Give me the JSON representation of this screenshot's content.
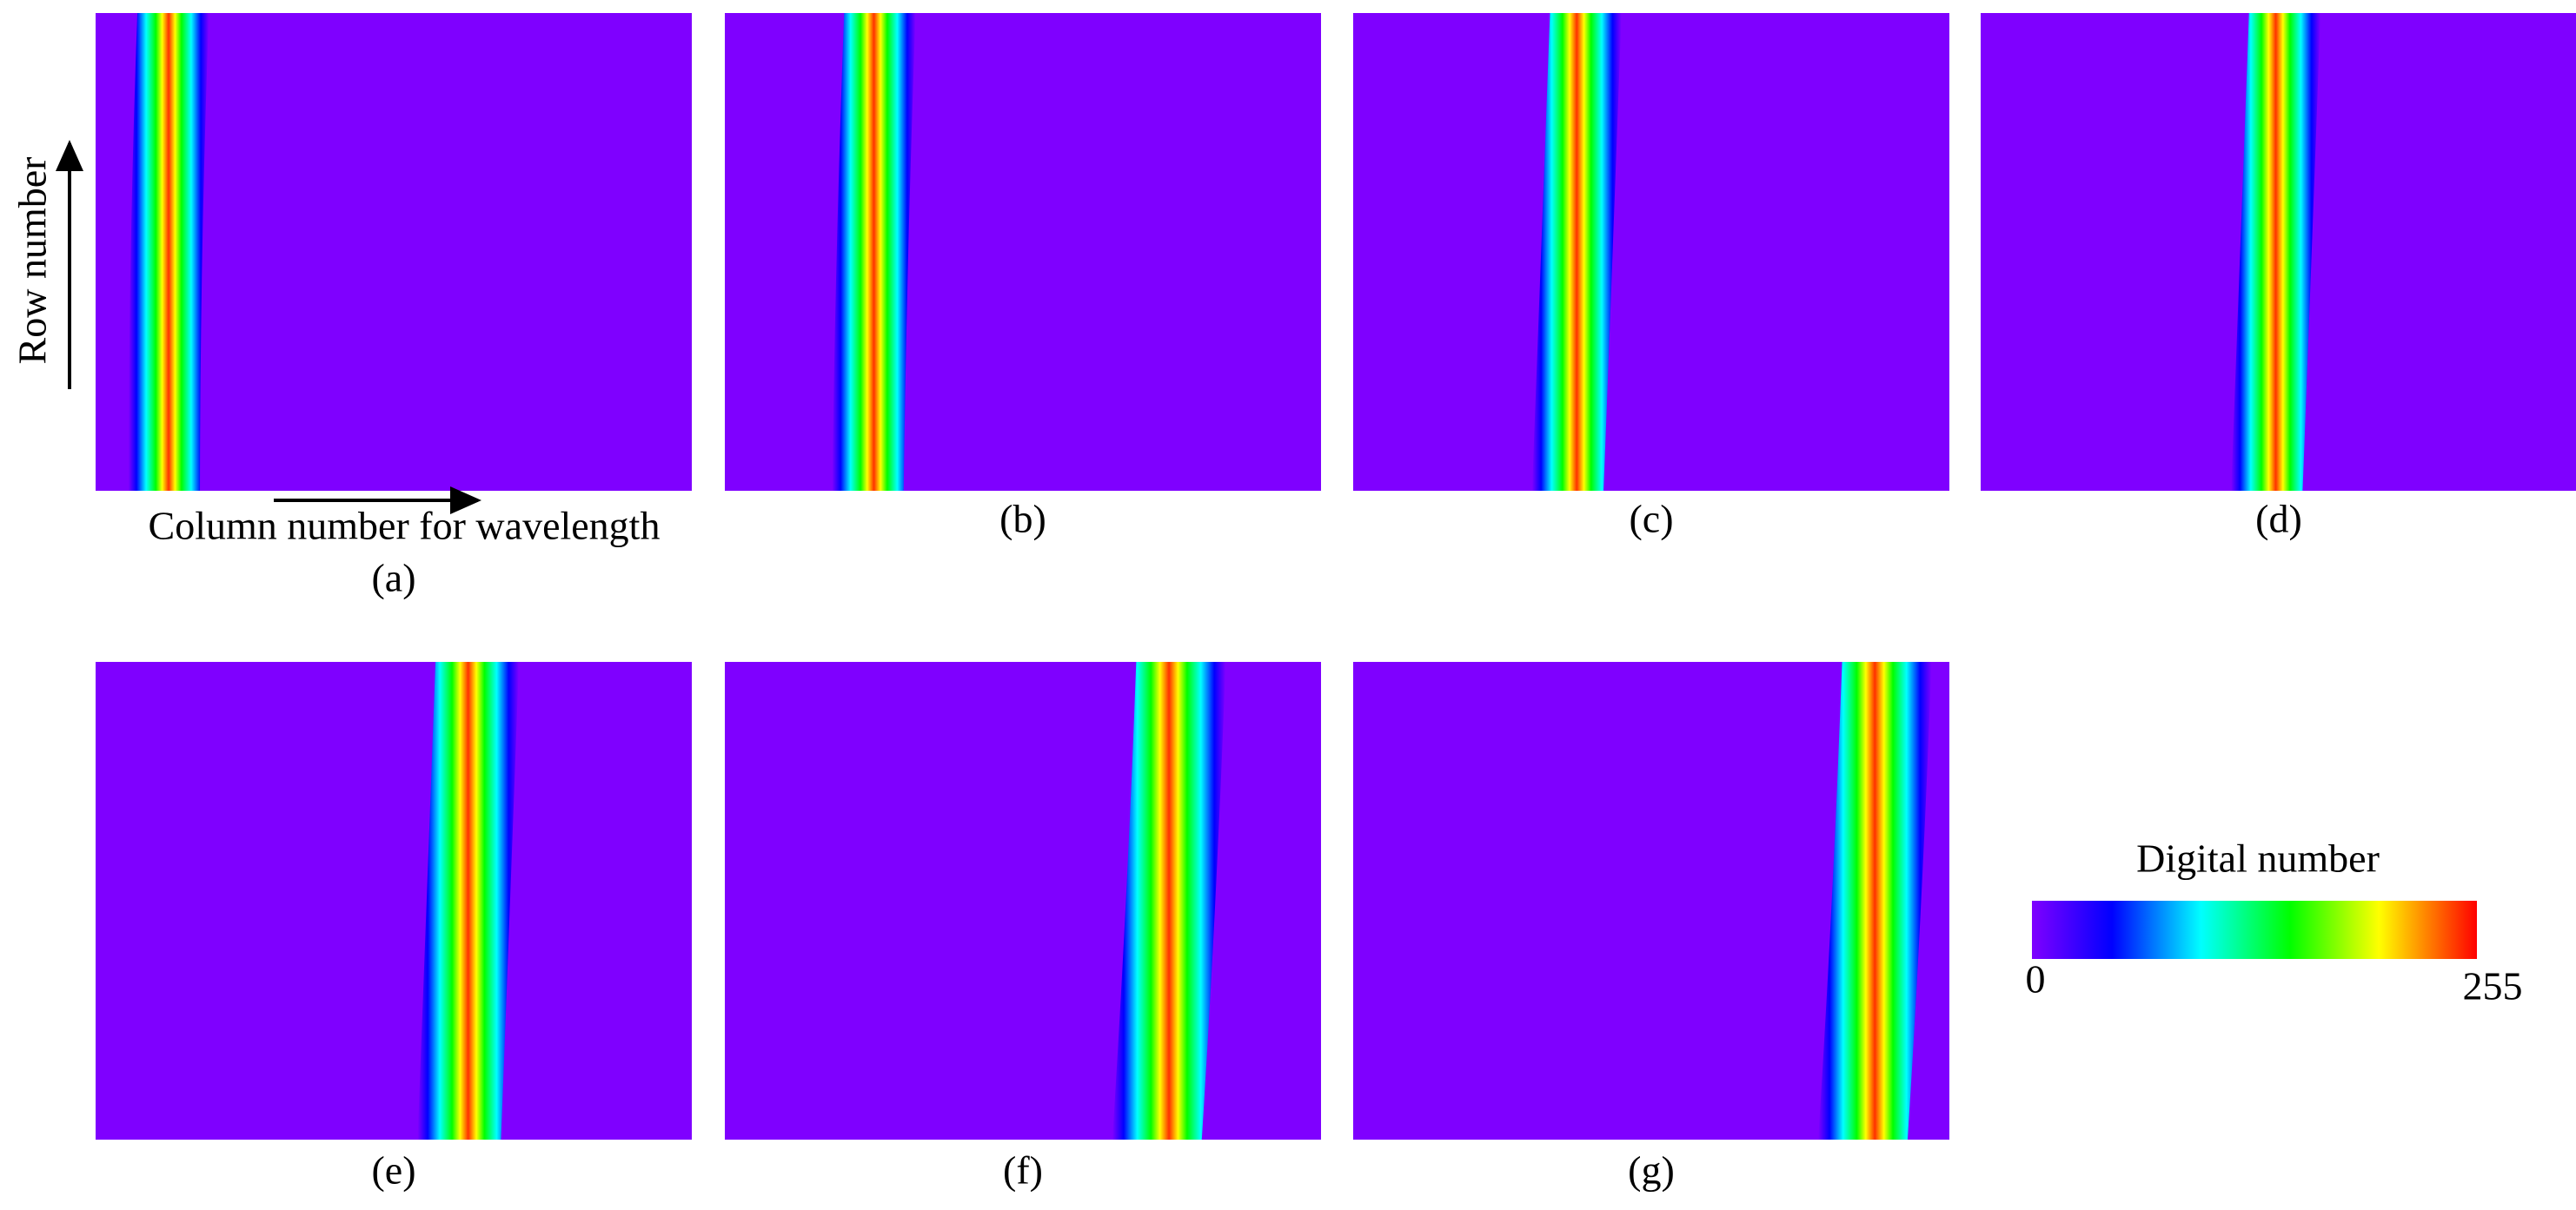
{
  "figure": {
    "panels": [
      {
        "label": "(a)"
      },
      {
        "label": "(b)"
      },
      {
        "label": "(c)"
      },
      {
        "label": "(d)"
      },
      {
        "label": "(e)"
      },
      {
        "label": "(f)"
      },
      {
        "label": "(g)"
      }
    ],
    "x_axis_label": "Column number for wavelength",
    "y_axis_label": "Row number",
    "colorbar": {
      "title": "Digital number",
      "min_label": "0",
      "max_label": "255"
    }
  }
}
